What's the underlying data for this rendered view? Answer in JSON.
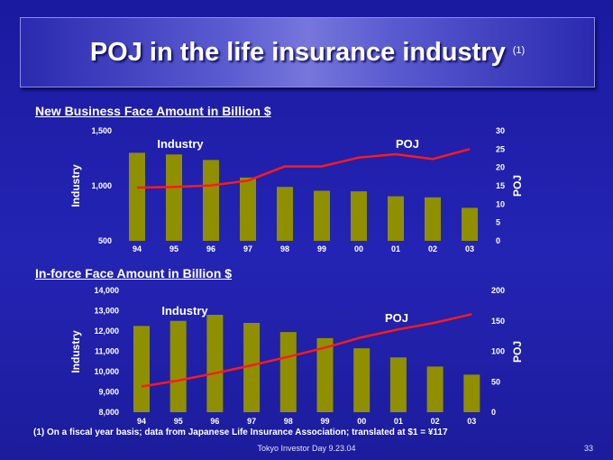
{
  "slide": {
    "title": "POJ in the life insurance industry",
    "title_note": "(1)",
    "footnote": "(1) On a fiscal year basis; data from Japanese Life Insurance Association; translated at  $1 =  ¥117",
    "footer": "Tokyo Investor Day 9.23.04",
    "page_number": "33"
  },
  "colors": {
    "background": "#1e1fa8",
    "bar": "#8f8f00",
    "line": "#ff1a1a",
    "text": "#ffffff"
  },
  "chart_data": [
    {
      "type": "bar+line",
      "title": "New Business Face Amount in Billion $",
      "categories": [
        "94",
        "95",
        "96",
        "97",
        "98",
        "99",
        "00",
        "01",
        "02",
        "03"
      ],
      "left_axis": {
        "label": "Industry",
        "range": [
          500,
          1500
        ],
        "ticks": [
          "1,500",
          "1,000",
          "500"
        ],
        "tick_values": [
          1500,
          1000,
          500
        ]
      },
      "right_axis": {
        "label": "POJ",
        "range": [
          0,
          30
        ],
        "ticks": [
          "30",
          "25",
          "20",
          "15",
          "10",
          "5",
          "0"
        ],
        "tick_values": [
          30,
          25,
          20,
          15,
          10,
          5,
          0
        ]
      },
      "series": [
        {
          "name": "Industry",
          "type": "bar",
          "axis": "left",
          "values": [
            1300,
            1285,
            1235,
            1075,
            990,
            955,
            950,
            905,
            895,
            800
          ]
        },
        {
          "name": "POJ",
          "type": "line",
          "axis": "right",
          "values": [
            14.5,
            14.7,
            15.1,
            16.4,
            20.3,
            20.3,
            22.7,
            23.6,
            22.3,
            25.0
          ]
        }
      ],
      "grid": false
    },
    {
      "type": "bar+line",
      "title": "In-force Face Amount in Billion $",
      "categories": [
        "94",
        "95",
        "96",
        "97",
        "98",
        "99",
        "00",
        "01",
        "02",
        "03"
      ],
      "left_axis": {
        "label": "Industry",
        "range": [
          8000,
          14000
        ],
        "ticks": [
          "14,000",
          "13,000",
          "12,000",
          "11,000",
          "10,000",
          "9,000",
          "8,000"
        ],
        "tick_values": [
          14000,
          13000,
          12000,
          11000,
          10000,
          9000,
          8000
        ]
      },
      "right_axis": {
        "label": "POJ",
        "range": [
          0,
          200
        ],
        "ticks": [
          "200",
          "150",
          "100",
          "50",
          "0"
        ],
        "tick_values": [
          200,
          150,
          100,
          50,
          0
        ]
      },
      "series": [
        {
          "name": "Industry",
          "type": "bar",
          "axis": "left",
          "values": [
            12250,
            12500,
            12800,
            12400,
            11950,
            11650,
            11150,
            10700,
            10250,
            9850
          ]
        },
        {
          "name": "POJ",
          "type": "line",
          "axis": "right",
          "values": [
            42,
            52,
            64,
            77,
            91,
            106,
            123,
            136,
            147,
            161
          ]
        }
      ],
      "grid": false
    }
  ]
}
